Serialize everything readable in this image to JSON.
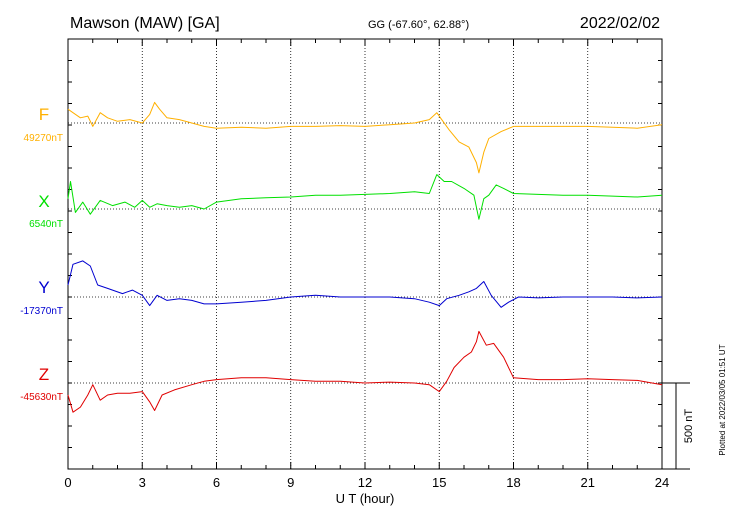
{
  "header": {
    "station": "Mawson (MAW)  [GA]",
    "coords": "GG (-67.60°,  62.88°)",
    "date": "2022/02/02"
  },
  "footer": {
    "plotted": "Plotted at 2022/03/05 01:51  UT",
    "scale_label": "500 nT"
  },
  "chart_data": {
    "type": "line",
    "title": "Mawson (MAW)  [GA]",
    "xlabel": "U T (hour)",
    "ylabel": "",
    "xlim": [
      0,
      24
    ],
    "xticks": [
      "0",
      "3",
      "6",
      "9",
      "12",
      "15",
      "18",
      "21",
      "24"
    ],
    "grid": true,
    "scale_bar_nT": 500,
    "series": [
      {
        "name": "F",
        "baseline_label": "49270nT",
        "baseline_nT": 49270,
        "color": "#ffb000",
        "points": [
          [
            0,
            49350
          ],
          [
            0.2,
            49330
          ],
          [
            0.5,
            49300
          ],
          [
            0.8,
            49310
          ],
          [
            1.0,
            49250
          ],
          [
            1.3,
            49330
          ],
          [
            1.6,
            49300
          ],
          [
            2.0,
            49280
          ],
          [
            2.5,
            49290
          ],
          [
            3.0,
            49270
          ],
          [
            3.3,
            49320
          ],
          [
            3.5,
            49390
          ],
          [
            3.7,
            49350
          ],
          [
            4.0,
            49300
          ],
          [
            4.5,
            49290
          ],
          [
            5.0,
            49270
          ],
          [
            5.5,
            49250
          ],
          [
            6,
            49240
          ],
          [
            7,
            49245
          ],
          [
            8,
            49240
          ],
          [
            9,
            49250
          ],
          [
            10,
            49250
          ],
          [
            11,
            49255
          ],
          [
            12,
            49250
          ],
          [
            13,
            49260
          ],
          [
            14,
            49270
          ],
          [
            14.6,
            49290
          ],
          [
            14.9,
            49330
          ],
          [
            15.1,
            49290
          ],
          [
            15.4,
            49230
          ],
          [
            15.8,
            49160
          ],
          [
            16.2,
            49130
          ],
          [
            16.5,
            49040
          ],
          [
            16.6,
            48980
          ],
          [
            16.8,
            49100
          ],
          [
            17,
            49180
          ],
          [
            17.5,
            49220
          ],
          [
            18,
            49250
          ],
          [
            19,
            49250
          ],
          [
            20,
            49250
          ],
          [
            21,
            49250
          ],
          [
            22,
            49245
          ],
          [
            23,
            49240
          ],
          [
            24,
            49260
          ]
        ]
      },
      {
        "name": "X",
        "baseline_label": "6540nT",
        "baseline_nT": 6540,
        "color": "#00e000",
        "points": [
          [
            0,
            6600
          ],
          [
            0.1,
            6700
          ],
          [
            0.3,
            6520
          ],
          [
            0.6,
            6580
          ],
          [
            0.9,
            6510
          ],
          [
            1.3,
            6590
          ],
          [
            1.8,
            6560
          ],
          [
            2.3,
            6580
          ],
          [
            2.7,
            6550
          ],
          [
            3.0,
            6590
          ],
          [
            3.3,
            6550
          ],
          [
            3.6,
            6570
          ],
          [
            4.0,
            6560
          ],
          [
            4.5,
            6550
          ],
          [
            5.0,
            6560
          ],
          [
            5.5,
            6540
          ],
          [
            6,
            6580
          ],
          [
            7,
            6600
          ],
          [
            8,
            6605
          ],
          [
            9,
            6610
          ],
          [
            10,
            6620
          ],
          [
            11,
            6620
          ],
          [
            12,
            6625
          ],
          [
            13,
            6630
          ],
          [
            14,
            6640
          ],
          [
            14.6,
            6630
          ],
          [
            14.9,
            6740
          ],
          [
            15.2,
            6700
          ],
          [
            15.5,
            6700
          ],
          [
            16,
            6660
          ],
          [
            16.4,
            6620
          ],
          [
            16.6,
            6480
          ],
          [
            16.8,
            6600
          ],
          [
            17,
            6620
          ],
          [
            17.3,
            6680
          ],
          [
            17.6,
            6660
          ],
          [
            18,
            6630
          ],
          [
            19,
            6625
          ],
          [
            20,
            6620
          ],
          [
            21,
            6620
          ],
          [
            22,
            6615
          ],
          [
            23,
            6610
          ],
          [
            24,
            6620
          ]
        ]
      },
      {
        "name": "Y",
        "baseline_label": "-17370nT",
        "baseline_nT": -17370,
        "color": "#0000d0",
        "points": [
          [
            0,
            -17300
          ],
          [
            0.2,
            -17180
          ],
          [
            0.6,
            -17160
          ],
          [
            0.9,
            -17190
          ],
          [
            1.2,
            -17300
          ],
          [
            1.6,
            -17320
          ],
          [
            2.2,
            -17350
          ],
          [
            2.6,
            -17330
          ],
          [
            3.0,
            -17360
          ],
          [
            3.3,
            -17420
          ],
          [
            3.6,
            -17360
          ],
          [
            4.0,
            -17390
          ],
          [
            4.5,
            -17380
          ],
          [
            5.0,
            -17390
          ],
          [
            5.5,
            -17410
          ],
          [
            6,
            -17410
          ],
          [
            7,
            -17400
          ],
          [
            8,
            -17390
          ],
          [
            9,
            -17370
          ],
          [
            10,
            -17360
          ],
          [
            11,
            -17370
          ],
          [
            12,
            -17370
          ],
          [
            13,
            -17370
          ],
          [
            14,
            -17380
          ],
          [
            14.6,
            -17400
          ],
          [
            15.0,
            -17420
          ],
          [
            15.3,
            -17380
          ],
          [
            15.8,
            -17360
          ],
          [
            16.2,
            -17340
          ],
          [
            16.5,
            -17320
          ],
          [
            16.8,
            -17280
          ],
          [
            17.1,
            -17360
          ],
          [
            17.5,
            -17430
          ],
          [
            17.8,
            -17400
          ],
          [
            18.2,
            -17370
          ],
          [
            19,
            -17375
          ],
          [
            20,
            -17370
          ],
          [
            21,
            -17370
          ],
          [
            22,
            -17370
          ],
          [
            23,
            -17375
          ],
          [
            24,
            -17370
          ]
        ]
      },
      {
        "name": "Z",
        "baseline_label": "-45630nT",
        "baseline_nT": -45630,
        "color": "#e00000",
        "points": [
          [
            0,
            -45700
          ],
          [
            0.2,
            -45800
          ],
          [
            0.5,
            -45770
          ],
          [
            0.8,
            -45700
          ],
          [
            1.0,
            -45640
          ],
          [
            1.3,
            -45730
          ],
          [
            1.6,
            -45700
          ],
          [
            2.0,
            -45690
          ],
          [
            2.5,
            -45690
          ],
          [
            3.0,
            -45680
          ],
          [
            3.3,
            -45740
          ],
          [
            3.5,
            -45790
          ],
          [
            3.8,
            -45700
          ],
          [
            4.3,
            -45670
          ],
          [
            5.0,
            -45640
          ],
          [
            5.5,
            -45620
          ],
          [
            6,
            -45610
          ],
          [
            7,
            -45600
          ],
          [
            8,
            -45600
          ],
          [
            9,
            -45610
          ],
          [
            10,
            -45620
          ],
          [
            11,
            -45620
          ],
          [
            12,
            -45630
          ],
          [
            13,
            -45625
          ],
          [
            14,
            -45630
          ],
          [
            14.6,
            -45640
          ],
          [
            15.0,
            -45680
          ],
          [
            15.3,
            -45620
          ],
          [
            15.6,
            -45540
          ],
          [
            16.0,
            -45480
          ],
          [
            16.3,
            -45450
          ],
          [
            16.5,
            -45390
          ],
          [
            16.6,
            -45330
          ],
          [
            16.9,
            -45410
          ],
          [
            17.2,
            -45400
          ],
          [
            17.6,
            -45480
          ],
          [
            18,
            -45600
          ],
          [
            19,
            -45610
          ],
          [
            20,
            -45610
          ],
          [
            21,
            -45605
          ],
          [
            22,
            -45610
          ],
          [
            23,
            -45615
          ],
          [
            24,
            -45640
          ]
        ]
      }
    ]
  }
}
